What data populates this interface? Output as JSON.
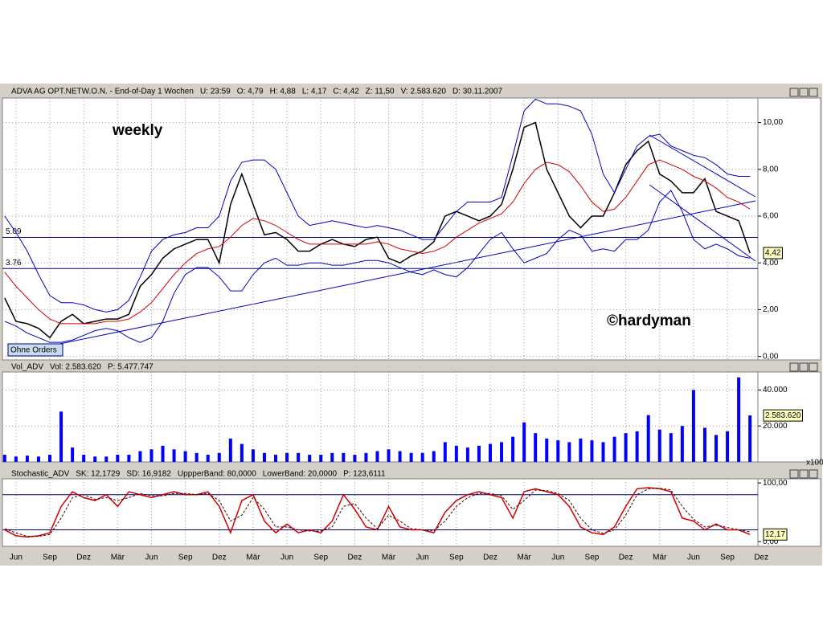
{
  "chart_data": [
    {
      "type": "line",
      "header": [
        "ADVA AG OPT.NETW.O.N. - End-of-Day 1 Wochen",
        "U: 23:59",
        "O: 4,79",
        "H: 4,88",
        "L: 4,17",
        "C: 4,42",
        "Z: 11,50",
        "V: 2.583.620",
        "D: 30.11.2007"
      ],
      "header_colors": [
        "#000080",
        "#000080",
        "#000080",
        "#000080",
        "#000080",
        "#000080",
        "#d00000",
        "#000080",
        "#000080"
      ],
      "annotations": [
        "weekly",
        "©hardyman"
      ],
      "button": "Ohne Orders",
      "hlines": [
        5.09,
        3.76
      ],
      "last_value_label": "4,42",
      "ylim": [
        -0.15,
        11.05
      ],
      "yticks": [
        {
          "value": 0,
          "label": "0,00"
        },
        {
          "value": 2,
          "label": "2,00"
        },
        {
          "value": 4,
          "label": "4,00"
        },
        {
          "value": 6,
          "label": "6,00"
        },
        {
          "value": 8,
          "label": "8,00"
        },
        {
          "value": 10,
          "label": "10,00"
        }
      ],
      "grid": true,
      "series": [
        {
          "color": "#000000",
          "values": [
            2.5,
            1.5,
            1.4,
            1.2,
            0.8,
            1.5,
            1.8,
            1.4,
            1.5,
            1.6,
            1.6,
            1.8,
            3.0,
            3.5,
            4.2,
            4.6,
            4.8,
            5.0,
            5.0,
            4.0,
            6.5,
            7.8,
            6.5,
            5.2,
            5.3,
            5.0,
            4.5,
            4.5,
            4.8,
            5.0,
            4.8,
            4.7,
            5.0,
            5.1,
            4.2,
            4.0,
            4.3,
            4.5,
            4.9,
            6.0,
            6.2,
            6.0,
            5.8,
            6.0,
            6.5,
            8.0,
            9.8,
            10.0,
            8.0,
            7.0,
            6.0,
            5.5,
            6.0,
            6.0,
            7.0,
            8.2,
            8.8,
            9.2,
            7.8,
            7.5,
            7.0,
            7.0,
            7.6,
            6.2,
            6.0,
            5.8,
            4.42
          ]
        },
        {
          "color": "#d00000",
          "values": [
            3.6,
            3.0,
            2.5,
            2.0,
            1.6,
            1.4,
            1.4,
            1.4,
            1.4,
            1.5,
            1.5,
            1.6,
            1.9,
            2.3,
            2.9,
            3.5,
            4.0,
            4.4,
            4.6,
            4.7,
            5.1,
            5.6,
            5.9,
            5.8,
            5.6,
            5.3,
            5.0,
            4.8,
            4.8,
            4.8,
            4.8,
            4.8,
            4.8,
            4.9,
            4.8,
            4.6,
            4.5,
            4.4,
            4.5,
            4.7,
            5.1,
            5.4,
            5.7,
            5.9,
            6.1,
            6.6,
            7.4,
            8.0,
            8.3,
            8.2,
            7.9,
            7.3,
            6.6,
            6.2,
            6.3,
            6.8,
            7.5,
            8.2,
            8.4,
            8.2,
            8.0,
            7.7,
            7.5,
            7.2,
            6.8,
            6.6,
            6.3
          ]
        },
        {
          "color": "#0000c0",
          "values": [
            6.0,
            5.3,
            4.5,
            3.5,
            2.6,
            2.3,
            2.3,
            2.2,
            2.0,
            1.9,
            2.0,
            2.4,
            3.4,
            4.5,
            5.0,
            5.2,
            5.3,
            5.5,
            5.5,
            6.0,
            7.5,
            8.3,
            8.4,
            8.4,
            8.0,
            7.0,
            6.0,
            5.6,
            5.7,
            5.8,
            5.7,
            5.6,
            5.5,
            5.6,
            5.5,
            5.4,
            5.2,
            5.0,
            5.0,
            5.6,
            6.2,
            6.6,
            6.6,
            6.6,
            6.8,
            8.6,
            10.5,
            11.0,
            10.8,
            10.8,
            10.7,
            10.5,
            9.5,
            7.8,
            7.0,
            8.0,
            9.0,
            9.4,
            9.5,
            9.0,
            8.8,
            8.6,
            8.5,
            8.2,
            7.8,
            7.7,
            7.7
          ]
        },
        {
          "color": "#0000c0",
          "values": [
            1.5,
            1.3,
            1.0,
            0.8,
            0.6,
            0.6,
            0.7,
            0.9,
            1.1,
            1.2,
            1.1,
            0.8,
            0.6,
            0.8,
            1.5,
            2.7,
            3.5,
            3.8,
            3.8,
            3.4,
            2.8,
            2.8,
            3.5,
            4.0,
            4.2,
            3.9,
            3.9,
            4.0,
            4.0,
            3.9,
            3.9,
            4.0,
            4.1,
            4.1,
            4.0,
            3.8,
            3.6,
            3.5,
            3.7,
            3.5,
            3.4,
            3.8,
            4.4,
            5.0,
            5.3,
            4.6,
            4.0,
            4.2,
            4.4,
            5.0,
            5.4,
            5.2,
            4.5,
            4.6,
            4.5,
            5.0,
            5.0,
            5.4,
            6.6,
            7.1,
            6.2,
            5.0,
            4.6,
            4.8,
            4.6,
            4.3,
            4.2
          ]
        }
      ]
    },
    {
      "type": "bar",
      "header": [
        "Vol_ADV",
        "Vol: 2.583.620",
        "P: 5.477.747"
      ],
      "header_colors": [
        "#000080",
        "#000080",
        "#d00000"
      ],
      "unit_label": "x100",
      "last_value_label": "2.583.620",
      "ylim": [
        0,
        50000
      ],
      "yticks": [
        {
          "value": 20000,
          "label": "20.000"
        },
        {
          "value": 40000,
          "label": "40.000"
        }
      ],
      "grid": true,
      "color": "#0000ff",
      "values": [
        4000,
        3000,
        3500,
        3000,
        4000,
        28000,
        8000,
        4000,
        3000,
        3000,
        4000,
        4000,
        6000,
        7000,
        9000,
        7000,
        6000,
        5000,
        4000,
        5000,
        13000,
        10000,
        7000,
        5000,
        4000,
        5000,
        5000,
        4000,
        4000,
        5000,
        5000,
        4000,
        5000,
        6000,
        7000,
        6000,
        5000,
        5000,
        6000,
        11000,
        9000,
        8000,
        9000,
        10000,
        11000,
        14000,
        22000,
        16000,
        13000,
        12000,
        11000,
        13000,
        12000,
        11000,
        14000,
        16000,
        17000,
        26000,
        18000,
        16000,
        20000,
        40000,
        19000,
        15000,
        17000,
        47000,
        25836.2
      ]
    },
    {
      "type": "line",
      "header": [
        "Stochastic_ADV",
        "SK: 12,1729",
        "SD: 16,9182",
        "UppperBand: 80,0000",
        "LowerBand: 20,0000",
        "P: 123,6111"
      ],
      "header_colors": [
        "#d00000",
        "#000080",
        "#000080",
        "#000080",
        "#000080",
        "#d00000"
      ],
      "last_value_label": "12,17",
      "hlines": [
        80,
        20
      ],
      "ylim": [
        -8,
        107
      ],
      "yticks": [
        {
          "value": 0,
          "label": "0,00"
        },
        {
          "value": 100,
          "label": "100,00"
        }
      ],
      "xlim": [
        -0.2,
        66.7
      ],
      "xticks": [
        {
          "value": 1,
          "label": "Jun"
        },
        {
          "value": 4,
          "label": "Sep"
        },
        {
          "value": 7,
          "label": "Dez"
        },
        {
          "value": 10,
          "label": "Mär"
        },
        {
          "value": 13,
          "label": "Jun"
        },
        {
          "value": 16,
          "label": "Sep"
        },
        {
          "value": 19,
          "label": "Dez"
        },
        {
          "value": 22,
          "label": "Mär"
        },
        {
          "value": 25,
          "label": "Jun"
        },
        {
          "value": 28,
          "label": "Sep"
        },
        {
          "value": 31,
          "label": "Dez"
        },
        {
          "value": 34,
          "label": "Mär"
        },
        {
          "value": 37,
          "label": "Jun"
        },
        {
          "value": 40,
          "label": "Sep"
        },
        {
          "value": 43,
          "label": "Dez"
        },
        {
          "value": 46,
          "label": "Mär"
        },
        {
          "value": 49,
          "label": "Jun"
        },
        {
          "value": 52,
          "label": "Sep"
        },
        {
          "value": 55,
          "label": "Dez"
        },
        {
          "value": 58,
          "label": "Mär"
        },
        {
          "value": 61,
          "label": "Jun"
        },
        {
          "value": 64,
          "label": "Sep"
        },
        {
          "value": 67,
          "label": "Dez"
        }
      ],
      "series": [
        {
          "color": "#d00000",
          "values": [
            20,
            10,
            8,
            10,
            15,
            60,
            85,
            75,
            70,
            80,
            60,
            85,
            80,
            75,
            80,
            85,
            80,
            80,
            85,
            60,
            15,
            70,
            80,
            35,
            15,
            30,
            15,
            20,
            15,
            35,
            80,
            55,
            25,
            20,
            60,
            25,
            20,
            20,
            15,
            50,
            70,
            80,
            85,
            80,
            75,
            40,
            85,
            90,
            85,
            80,
            60,
            25,
            15,
            12,
            25,
            60,
            90,
            92,
            90,
            85,
            40,
            35,
            20,
            30,
            20,
            20,
            12.1729
          ]
        },
        {
          "color": "#400000",
          "dashed": true,
          "values": [
            22,
            15,
            9,
            9,
            12,
            40,
            75,
            80,
            72,
            75,
            70,
            75,
            82,
            78,
            78,
            82,
            82,
            80,
            82,
            70,
            35,
            45,
            75,
            55,
            25,
            25,
            20,
            18,
            18,
            25,
            60,
            65,
            40,
            22,
            45,
            35,
            22,
            20,
            18,
            35,
            60,
            75,
            82,
            82,
            78,
            55,
            70,
            88,
            87,
            82,
            70,
            40,
            20,
            14,
            20,
            45,
            80,
            90,
            91,
            88,
            60,
            38,
            25,
            28,
            24,
            20,
            16.9182
          ]
        }
      ]
    }
  ]
}
